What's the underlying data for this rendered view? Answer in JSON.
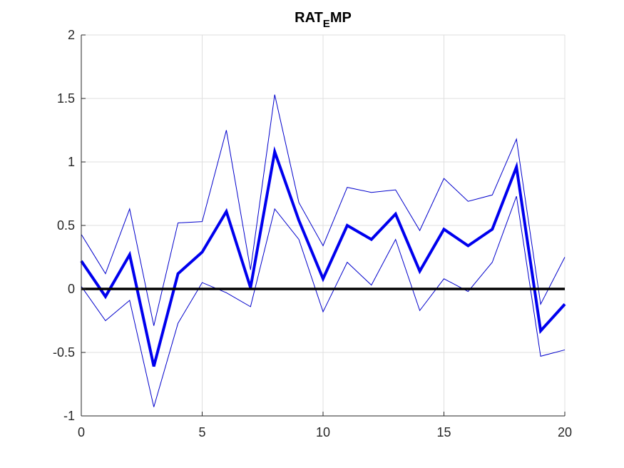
{
  "chart_data": {
    "type": "line",
    "title": "RAT",
    "title_subscript": "E",
    "title_suffix": "MP",
    "xlabel": "",
    "ylabel": "",
    "xlim": [
      0,
      20
    ],
    "ylim": [
      -1,
      2
    ],
    "xticks": [
      0,
      5,
      10,
      15,
      20
    ],
    "yticks": [
      -1,
      -0.5,
      0,
      0.5,
      1,
      1.5,
      2
    ],
    "xtick_labels": [
      "0",
      "5",
      "10",
      "15",
      "20"
    ],
    "ytick_labels": [
      "-1",
      "-0.5",
      "0",
      "0.5",
      "1",
      "1.5",
      "2"
    ],
    "grid": true,
    "zero_line": 0,
    "x": [
      0,
      1,
      2,
      3,
      4,
      5,
      6,
      7,
      8,
      9,
      10,
      11,
      12,
      13,
      14,
      15,
      16,
      17,
      18,
      19,
      20
    ],
    "series": [
      {
        "role": "median",
        "color": "#0000ee",
        "values": [
          0.22,
          -0.06,
          0.27,
          -0.61,
          0.12,
          0.29,
          0.61,
          0.01,
          1.08,
          0.54,
          0.08,
          0.5,
          0.39,
          0.59,
          0.14,
          0.47,
          0.34,
          0.47,
          0.96,
          -0.33,
          -0.12
        ]
      },
      {
        "role": "upper",
        "color": "#0000cc",
        "values": [
          0.43,
          0.12,
          0.63,
          -0.29,
          0.52,
          0.53,
          1.25,
          0.15,
          1.53,
          0.68,
          0.34,
          0.8,
          0.76,
          0.78,
          0.46,
          0.87,
          0.69,
          0.74,
          1.18,
          -0.12,
          0.25
        ]
      },
      {
        "role": "lower",
        "color": "#0000cc",
        "values": [
          0.02,
          -0.25,
          -0.09,
          -0.93,
          -0.27,
          0.05,
          -0.03,
          -0.14,
          0.63,
          0.39,
          -0.18,
          0.21,
          0.03,
          0.39,
          -0.17,
          0.08,
          -0.02,
          0.21,
          0.73,
          -0.53,
          -0.48
        ]
      }
    ]
  }
}
